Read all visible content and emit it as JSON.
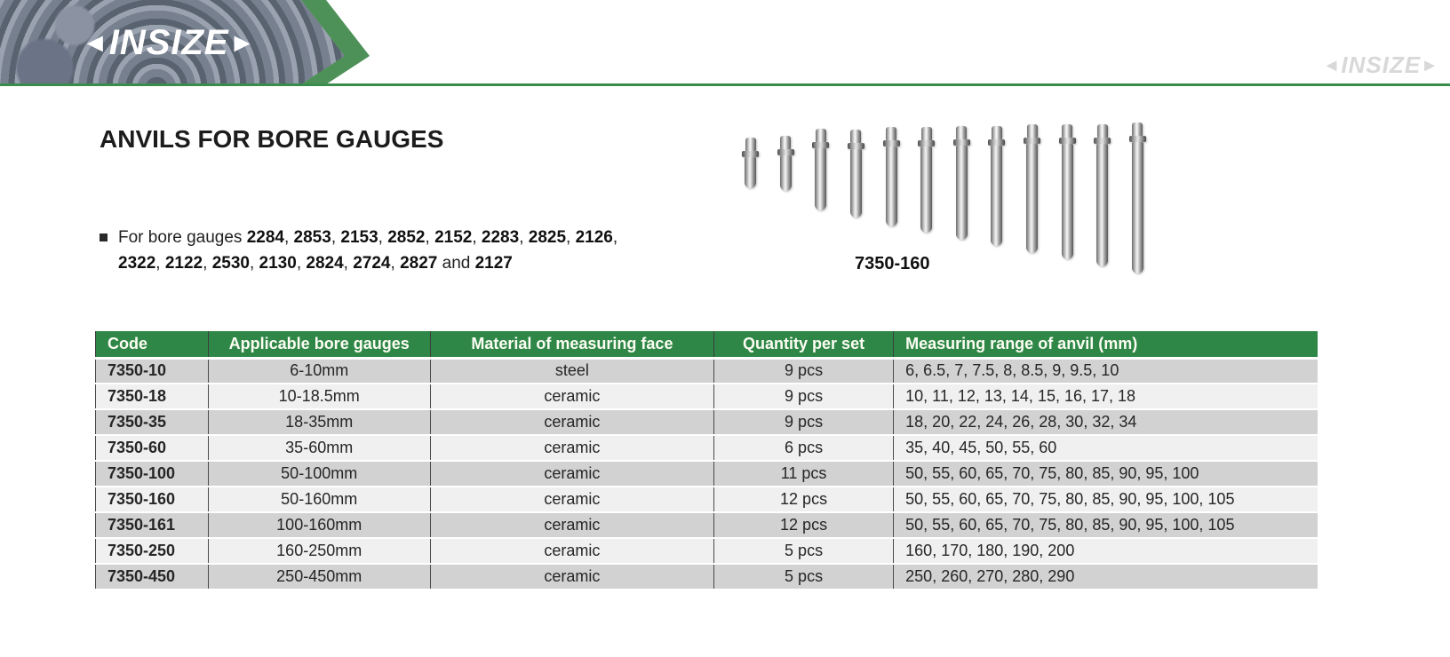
{
  "banner": {
    "logo_text": "INSIZE",
    "watermark_text": "INSIZE"
  },
  "page": {
    "title": "ANVILS FOR BORE GAUGES",
    "bullet": {
      "prefix": "For bore gauges ",
      "bold_codes": [
        "2284",
        "2853",
        "2153",
        "2852",
        "2152",
        "2283",
        "2825",
        "2126",
        "2322",
        "2122",
        "2530",
        "2130",
        "2824",
        "2724",
        "2827"
      ],
      "conjunction": " and ",
      "final_code": "2127"
    },
    "product_image": {
      "label": "7350-160",
      "anvil_count": 12
    }
  },
  "table": {
    "headers": [
      "Code",
      "Applicable bore gauges",
      "Material of measuring face",
      "Quantity per set",
      "Measuring range of anvil (mm)"
    ],
    "rows": [
      [
        "7350-10",
        "6-10mm",
        "steel",
        "9 pcs",
        "6, 6.5, 7, 7.5, 8, 8.5, 9, 9.5, 10"
      ],
      [
        "7350-18",
        "10-18.5mm",
        "ceramic",
        "9 pcs",
        "10, 11, 12, 13, 14, 15, 16, 17, 18"
      ],
      [
        "7350-35",
        "18-35mm",
        "ceramic",
        "9 pcs",
        "18, 20, 22, 24, 26, 28, 30, 32, 34"
      ],
      [
        "7350-60",
        "35-60mm",
        "ceramic",
        "6 pcs",
        "35, 40, 45, 50, 55, 60"
      ],
      [
        "7350-100",
        "50-100mm",
        "ceramic",
        "11 pcs",
        "50, 55, 60, 65, 70, 75, 80, 85, 90, 95, 100"
      ],
      [
        "7350-160",
        "50-160mm",
        "ceramic",
        "12 pcs",
        "50, 55, 60, 65, 70, 75, 80, 85, 90, 95, 100, 105"
      ],
      [
        "7350-161",
        "100-160mm",
        "ceramic",
        "12 pcs",
        "50, 55, 60, 65, 70, 75, 80, 85, 90, 95, 100, 105"
      ],
      [
        "7350-250",
        "160-250mm",
        "ceramic",
        "5 pcs",
        "160, 170, 180, 190, 200"
      ],
      [
        "7350-450",
        "250-450mm",
        "ceramic",
        "5 pcs",
        "250, 260, 270, 280, 290"
      ]
    ]
  },
  "colors": {
    "brand_green": "#4e9158",
    "line_green": "#3a8c4c",
    "table_header_green": "#2e8747",
    "row_odd": "#d2d2d2",
    "row_even": "#f0f0f0"
  }
}
